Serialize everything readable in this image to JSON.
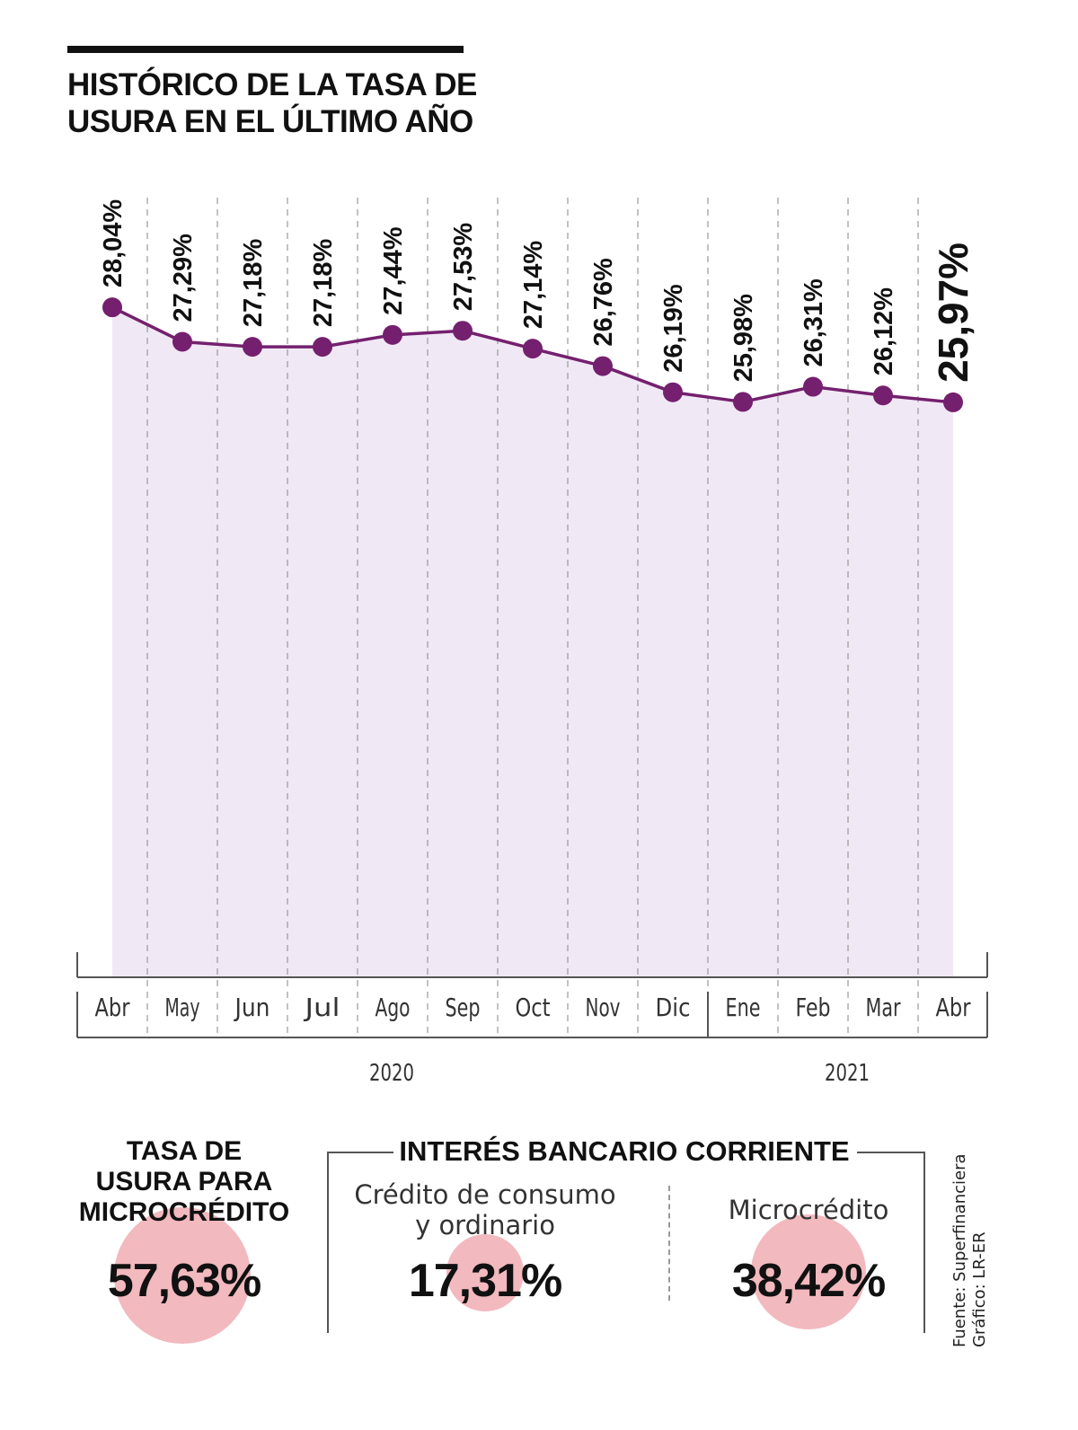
{
  "title": "HISTÓRICO DE LA TASA DE USURA EN EL ÚLTIMO AÑO",
  "colors": {
    "line": "#74206e",
    "area": "#f1e8f5",
    "circle": "#f2b9bf",
    "text": "#111111"
  },
  "chart_data": {
    "type": "line",
    "categories": [
      "Abr",
      "May",
      "Jun",
      "Jul",
      "Ago",
      "Sep",
      "Oct",
      "Nov",
      "Dic",
      "Ene",
      "Feb",
      "Mar",
      "Abr"
    ],
    "values": [
      28.04,
      27.29,
      27.18,
      27.18,
      27.44,
      27.53,
      27.14,
      26.76,
      26.19,
      25.98,
      26.31,
      26.12,
      25.97
    ],
    "value_labels": [
      "28,04%",
      "27,29%",
      "27,18%",
      "27,18%",
      "27,44%",
      "27,53%",
      "27,14%",
      "26,76%",
      "26,19%",
      "25,98%",
      "26,31%",
      "26,12%",
      "25,97%"
    ],
    "years": [
      {
        "label": "2020",
        "from": "Abr",
        "to": "Dic"
      },
      {
        "label": "2021",
        "from": "Ene",
        "to": "Abr"
      }
    ],
    "ylim": [
      24,
      28.7
    ],
    "grid": "vertical-dashed",
    "highlight_last": true
  },
  "microcredito": {
    "title_lines": [
      "TASA DE",
      "USURA PARA",
      "MICROCRÉDITO"
    ],
    "value": "57,63%"
  },
  "interes": {
    "title": "INTERÉS BANCARIO CORRIENTE",
    "consumo_lines": [
      "Crédito de consumo",
      "y ordinario"
    ],
    "consumo_value": "17,31%",
    "micro_label": "Microcrédito",
    "micro_value": "38,42%"
  },
  "source_lines": [
    "Fuente: Superfinanciera",
    "Gráfico: LR-ER"
  ]
}
